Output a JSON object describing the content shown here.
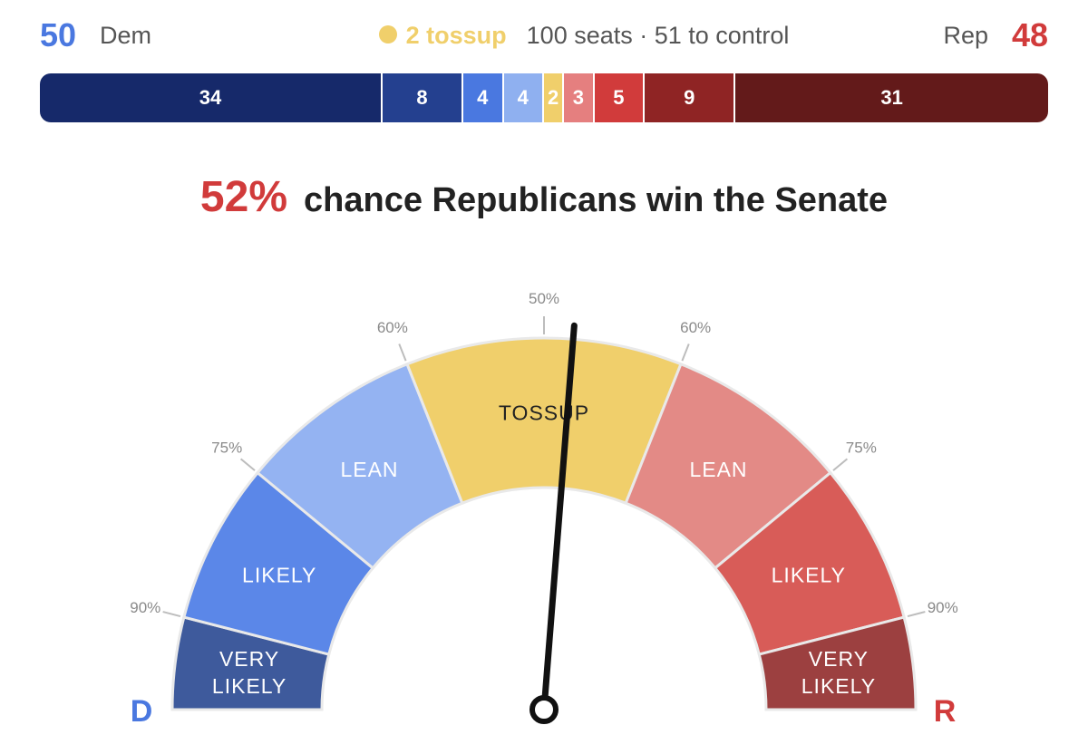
{
  "header": {
    "dem_count": "50",
    "dem_label": "Dem",
    "rep_label": "Rep",
    "rep_count": "48",
    "tossup_text": "2 tossup",
    "seats_text": "100 seats",
    "control_text": "· 51 to control"
  },
  "headline": {
    "percent": "52%",
    "text": "chance Republicans win the Senate"
  },
  "colors": {
    "dem": "#4a78e0",
    "rep": "#d13b3b",
    "tossup": "#f0cf6b"
  },
  "chart_data": [
    {
      "type": "bar",
      "title": "",
      "orientation": "horizontal-stacked",
      "total": 100,
      "segments": [
        {
          "value": 34,
          "color": "#16296a"
        },
        {
          "value": 8,
          "color": "#24408f"
        },
        {
          "value": 4,
          "color": "#4a78e0"
        },
        {
          "value": 4,
          "color": "#8fb0f0"
        },
        {
          "value": 2,
          "color": "#f0cf6b"
        },
        {
          "value": 3,
          "color": "#e57f7f"
        },
        {
          "value": 5,
          "color": "#d13b3b"
        },
        {
          "value": 9,
          "color": "#8f2424"
        },
        {
          "value": 31,
          "color": "#631a1a"
        }
      ]
    },
    {
      "type": "gauge",
      "title": "",
      "needle_value": 52,
      "needle_party": "R",
      "left_end_label": "D",
      "right_end_label": "R",
      "ticks": [
        {
          "label": "90%",
          "position": 0.08
        },
        {
          "label": "75%",
          "position": 0.22
        },
        {
          "label": "60%",
          "position": 0.38
        },
        {
          "label": "50%",
          "position": 0.5
        },
        {
          "label": "60%",
          "position": 0.62
        },
        {
          "label": "75%",
          "position": 0.78
        },
        {
          "label": "90%",
          "position": 0.92
        }
      ],
      "zones": [
        {
          "label": "VERY\nLIKELY",
          "start": 0.0,
          "end": 0.08,
          "color": "#3e5a9c"
        },
        {
          "label": "LIKELY",
          "start": 0.08,
          "end": 0.22,
          "color": "#5b87e8"
        },
        {
          "label": "LEAN",
          "start": 0.22,
          "end": 0.38,
          "color": "#94b3f2"
        },
        {
          "label": "TOSSUP",
          "start": 0.38,
          "end": 0.62,
          "color": "#f0cf6b"
        },
        {
          "label": "LEAN",
          "start": 0.62,
          "end": 0.78,
          "color": "#e38a86"
        },
        {
          "label": "LIKELY",
          "start": 0.78,
          "end": 0.92,
          "color": "#d85c58"
        },
        {
          "label": "VERY\nLIKELY",
          "start": 0.92,
          "end": 1.0,
          "color": "#9c4040"
        }
      ]
    }
  ]
}
